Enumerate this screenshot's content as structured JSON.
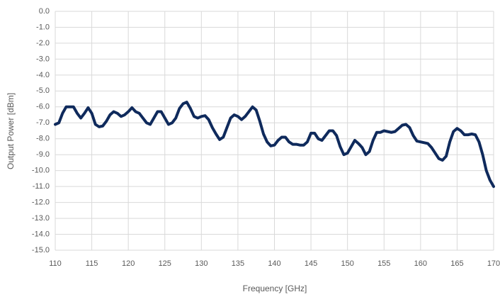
{
  "chart_data": {
    "type": "line",
    "xlabel": "Frequency [GHz]",
    "ylabel": "Output Power [dBm]",
    "color": "#0f2a5c",
    "grid": true,
    "xlim": [
      110,
      170
    ],
    "xticks": [
      110,
      115,
      120,
      125,
      130,
      135,
      140,
      145,
      150,
      155,
      160,
      165,
      170
    ],
    "ylim": [
      -15,
      0
    ],
    "yticks": [
      {
        "value": 0,
        "label": "0.0"
      },
      {
        "value": -1,
        "label": "-1.0"
      },
      {
        "value": -2,
        "label": "-2.0"
      },
      {
        "value": -3,
        "label": "-3.0"
      },
      {
        "value": -4,
        "label": "-4.0"
      },
      {
        "value": -5,
        "label": "-5.0"
      },
      {
        "value": -6,
        "label": "-6.0"
      },
      {
        "value": -7,
        "label": "-7.0"
      },
      {
        "value": -8,
        "label": "-8.0"
      },
      {
        "value": -9,
        "label": "-9.0"
      },
      {
        "value": -10,
        "label": "-10.0"
      },
      {
        "value": -11,
        "label": "-11.0"
      },
      {
        "value": -12,
        "label": "-12.0"
      },
      {
        "value": -13,
        "label": "-13.0"
      },
      {
        "value": -14,
        "label": "-14.0"
      },
      {
        "value": -15,
        "label": "-15.0"
      }
    ],
    "x": [
      110,
      110.5,
      111,
      111.5,
      112.5,
      113,
      113.5,
      114,
      114.5,
      115,
      115.5,
      116,
      116.5,
      117,
      117.5,
      118,
      118.5,
      119,
      119.5,
      120,
      120.5,
      121,
      121.5,
      122,
      122.5,
      123,
      123.5,
      124,
      124.5,
      125,
      125.5,
      126,
      126.5,
      127,
      127.5,
      128,
      128.5,
      129,
      129.5,
      130,
      130.5,
      131,
      131.5,
      132,
      132.5,
      133,
      133.5,
      134,
      134.5,
      135,
      135.5,
      136,
      136.5,
      137,
      137.5,
      138,
      138.5,
      139,
      139.5,
      140,
      140.5,
      141,
      141.5,
      142,
      142.5,
      143,
      143.5,
      144,
      144.5,
      145,
      145.5,
      146,
      146.5,
      147,
      147.5,
      148,
      148.5,
      149,
      149.5,
      150,
      150.5,
      151,
      151.5,
      152,
      152.5,
      153,
      153.5,
      154,
      154.5,
      155,
      155.5,
      156,
      156.5,
      157,
      157.5,
      158,
      158.5,
      159,
      159.5,
      160,
      160.5,
      161,
      161.5,
      162,
      162.5,
      163,
      163.5,
      164,
      164.5,
      165,
      165.5,
      166,
      166.5,
      167,
      167.5,
      168,
      168.5,
      169,
      169.5,
      170
    ],
    "values": [
      -7.1,
      -7.0,
      -6.4,
      -6.0,
      -6.0,
      -6.4,
      -6.7,
      -6.4,
      -6.05,
      -6.4,
      -7.1,
      -7.25,
      -7.2,
      -6.9,
      -6.5,
      -6.3,
      -6.4,
      -6.6,
      -6.5,
      -6.3,
      -6.05,
      -6.3,
      -6.4,
      -6.7,
      -7.0,
      -7.1,
      -6.7,
      -6.3,
      -6.3,
      -6.7,
      -7.1,
      -7.0,
      -6.7,
      -6.1,
      -5.8,
      -5.7,
      -6.1,
      -6.6,
      -6.7,
      -6.6,
      -6.55,
      -6.8,
      -7.3,
      -7.7,
      -8.05,
      -7.9,
      -7.3,
      -6.7,
      -6.5,
      -6.6,
      -6.8,
      -6.6,
      -6.3,
      -6.0,
      -6.2,
      -6.9,
      -7.7,
      -8.2,
      -8.45,
      -8.4,
      -8.1,
      -7.9,
      -7.9,
      -8.2,
      -8.35,
      -8.35,
      -8.4,
      -8.4,
      -8.2,
      -7.65,
      -7.65,
      -8.0,
      -8.1,
      -7.8,
      -7.5,
      -7.5,
      -7.8,
      -8.5,
      -9.0,
      -8.9,
      -8.5,
      -8.1,
      -8.3,
      -8.55,
      -9.0,
      -8.8,
      -8.1,
      -7.6,
      -7.6,
      -7.5,
      -7.55,
      -7.6,
      -7.55,
      -7.35,
      -7.15,
      -7.1,
      -7.3,
      -7.8,
      -8.15,
      -8.2,
      -8.25,
      -8.3,
      -8.55,
      -8.9,
      -9.25,
      -9.35,
      -9.1,
      -8.2,
      -7.55,
      -7.35,
      -7.5,
      -7.75,
      -7.75,
      -7.7,
      -7.75,
      -8.2,
      -9.0,
      -10.0,
      -10.6,
      -11.0
    ]
  }
}
